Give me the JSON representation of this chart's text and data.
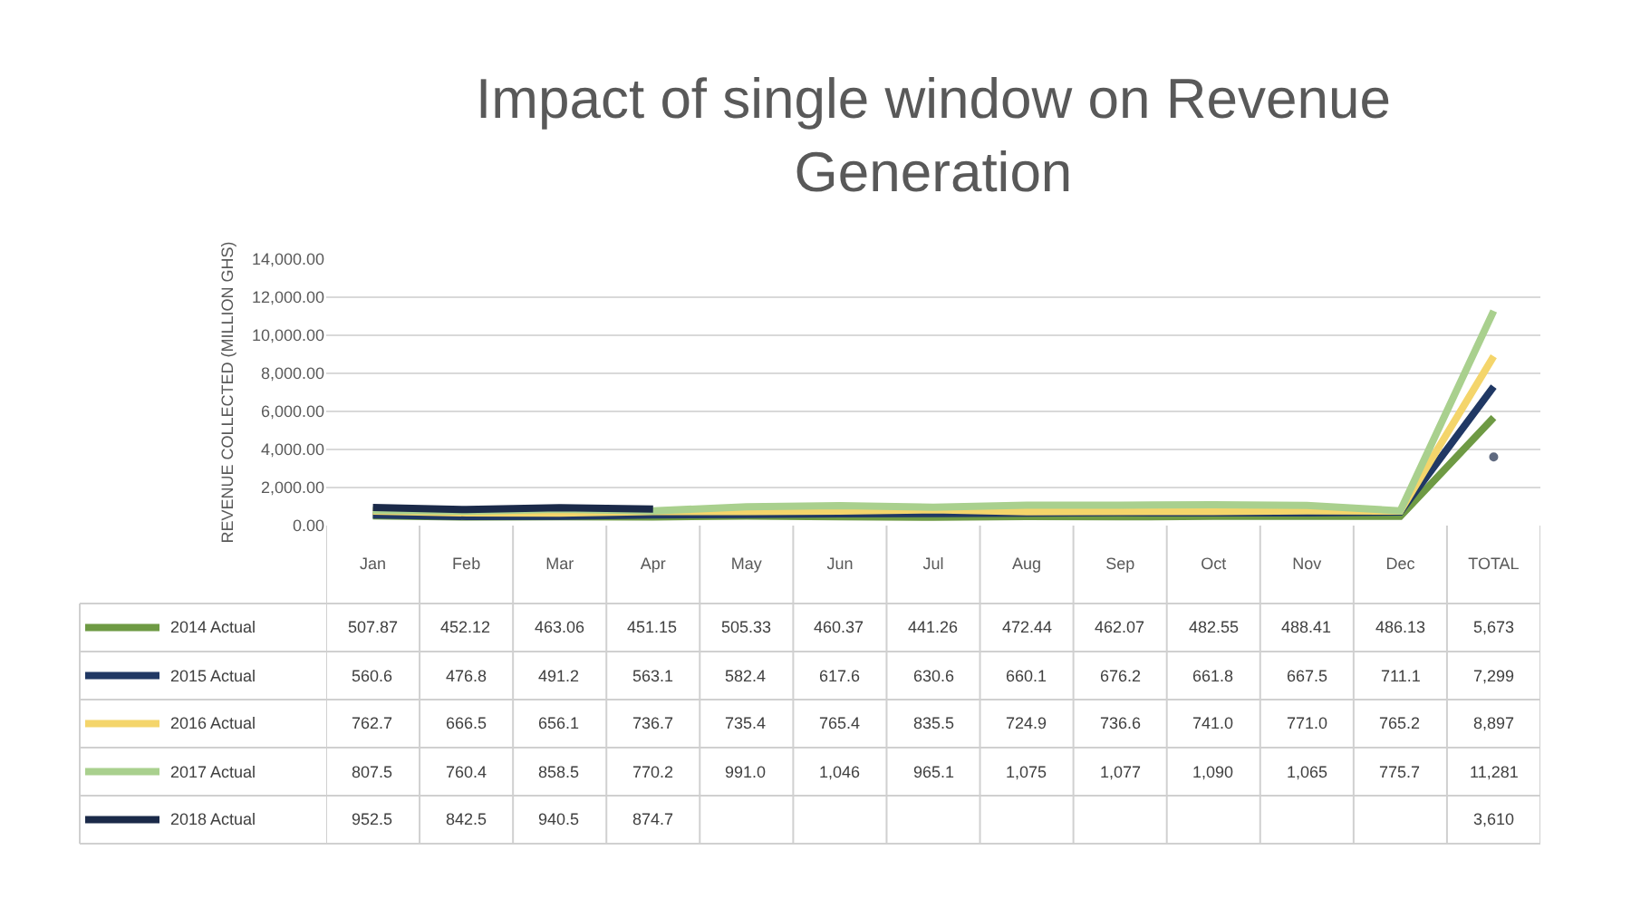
{
  "chart_data": {
    "type": "line",
    "title": "Impact of single window on Revenue Generation",
    "ylabel": "REVENUE COLLECTED (MILLION GHS)",
    "categories": [
      "Jan",
      "Feb",
      "Mar",
      "Apr",
      "May",
      "Jun",
      "Jul",
      "Aug",
      "Sep",
      "Oct",
      "Nov",
      "Dec",
      "TOTAL"
    ],
    "series": [
      {
        "name": "2014 Actual",
        "color": "#6e9a44",
        "values": [
          507.87,
          452.12,
          463.06,
          451.15,
          505.33,
          460.37,
          441.26,
          472.44,
          462.07,
          482.55,
          488.41,
          486.13,
          5673
        ],
        "value_labels": [
          "507.87",
          "452.12",
          "463.06",
          "451.15",
          "505.33",
          "460.37",
          "441.26",
          "472.44",
          "462.07",
          "482.55",
          "488.41",
          "486.13",
          "5,673"
        ]
      },
      {
        "name": "2015 Actual",
        "color": "#203864",
        "values": [
          560.6,
          476.8,
          491.2,
          563.1,
          582.4,
          617.6,
          630.6,
          660.1,
          676.2,
          661.8,
          667.5,
          711.1,
          7299
        ],
        "value_labels": [
          "560.6",
          "476.8",
          "491.2",
          "563.1",
          "582.4",
          "617.6",
          "630.6",
          "660.1",
          "676.2",
          "661.8",
          "667.5",
          "711.1",
          "7,299"
        ]
      },
      {
        "name": "2016 Actual",
        "color": "#f4d56b",
        "values": [
          762.7,
          666.5,
          656.1,
          736.7,
          735.4,
          765.4,
          835.5,
          724.9,
          736.6,
          741.0,
          771.0,
          765.2,
          8897
        ],
        "value_labels": [
          "762.7",
          "666.5",
          "656.1",
          "736.7",
          "735.4",
          "765.4",
          "835.5",
          "724.9",
          "736.6",
          "741.0",
          "771.0",
          "765.2",
          "8,897"
        ]
      },
      {
        "name": "2017 Actual",
        "color": "#a9d08e",
        "values": [
          807.5,
          760.4,
          858.5,
          770.2,
          991.0,
          1046,
          965.1,
          1075,
          1077,
          1090,
          1065,
          775.7,
          11281
        ],
        "value_labels": [
          "807.5",
          "760.4",
          "858.5",
          "770.2",
          "991.0",
          "1,046",
          "965.1",
          "1,075",
          "1,077",
          "1,090",
          "1,065",
          "775.7",
          "11,281"
        ]
      },
      {
        "name": "2018 Actual",
        "color": "#1b2a49",
        "values": [
          952.5,
          842.5,
          940.5,
          874.7,
          null,
          null,
          null,
          null,
          null,
          null,
          null,
          null,
          3610
        ],
        "value_labels": [
          "952.5",
          "842.5",
          "940.5",
          "874.7",
          null,
          null,
          null,
          null,
          null,
          null,
          null,
          null,
          "3,610"
        ]
      }
    ],
    "ylim": [
      0,
      14000
    ],
    "yticks": [
      {
        "value": 0,
        "label": "0.00"
      },
      {
        "value": 2000,
        "label": "2,000.00"
      },
      {
        "value": 4000,
        "label": "4,000.00"
      },
      {
        "value": 6000,
        "label": "6,000.00"
      },
      {
        "value": 8000,
        "label": "8,000.00"
      },
      {
        "value": 10000,
        "label": "10,000.00"
      },
      {
        "value": 12000,
        "label": "12,000.00"
      },
      {
        "value": 14000,
        "label": "14,000.00"
      }
    ],
    "grid": "y",
    "legend": "bottom left"
  }
}
